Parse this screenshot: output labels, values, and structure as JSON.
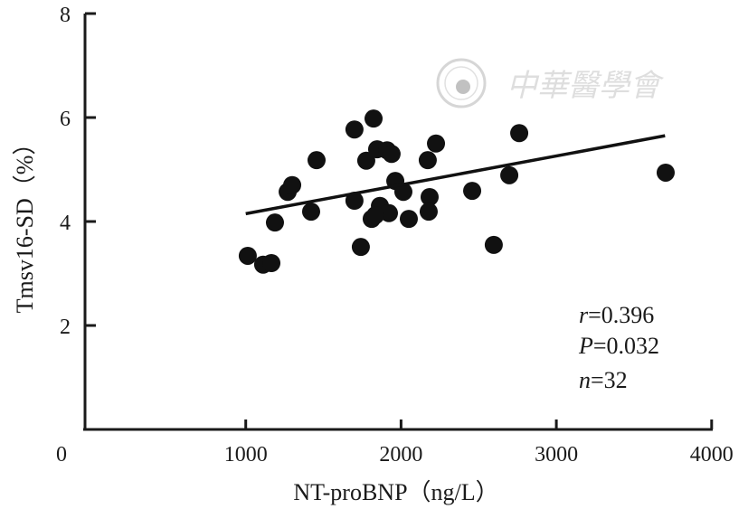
{
  "chart_data": {
    "type": "scatter",
    "title": "",
    "xlabel": "NT-proBNP（ng/L）",
    "ylabel": "Tmsv16-SD（%）",
    "xlim": [
      0,
      4000
    ],
    "ylim": [
      0,
      8
    ],
    "x_ticks": [
      0,
      1000,
      2000,
      3000,
      4000
    ],
    "x_tick_labels": [
      "0",
      "1000",
      "2000",
      "3000",
      "4000"
    ],
    "y_ticks": [
      2,
      4,
      6,
      8
    ],
    "y_tick_labels": [
      "2",
      "4",
      "6",
      "8"
    ],
    "grid": false,
    "points": [
      [
        1013,
        3.34
      ],
      [
        1112,
        3.17
      ],
      [
        1165,
        3.2
      ],
      [
        1188,
        3.98
      ],
      [
        1270,
        4.57
      ],
      [
        1299,
        4.7
      ],
      [
        1421,
        4.19
      ],
      [
        1456,
        5.18
      ],
      [
        1700,
        5.77
      ],
      [
        1700,
        4.4
      ],
      [
        1741,
        3.51
      ],
      [
        1823,
        5.98
      ],
      [
        1776,
        5.17
      ],
      [
        1811,
        4.05
      ],
      [
        1846,
        5.39
      ],
      [
        1864,
        4.3
      ],
      [
        1910,
        5.37
      ],
      [
        1939,
        5.3
      ],
      [
        1922,
        4.16
      ],
      [
        1835,
        4.12
      ],
      [
        1963,
        4.78
      ],
      [
        2015,
        4.57
      ],
      [
        2050,
        4.05
      ],
      [
        2172,
        5.18
      ],
      [
        2184,
        4.47
      ],
      [
        2178,
        4.19
      ],
      [
        2225,
        5.5
      ],
      [
        2458,
        4.59
      ],
      [
        2597,
        3.55
      ],
      [
        2697,
        4.89
      ],
      [
        2761,
        5.7
      ],
      [
        3704,
        4.94
      ]
    ],
    "trendline": {
      "x": [
        1000,
        3700
      ],
      "y": [
        4.15,
        5.65
      ]
    },
    "annotations": {
      "r_label": "r",
      "r_value": "=0.396",
      "p_label": "P",
      "p_value": "=0.032",
      "n_label": "n",
      "n_value": "=32"
    },
    "watermark": "中華醫學會",
    "colors": {
      "points": "#111111",
      "axis": "#1a1a1a"
    }
  }
}
